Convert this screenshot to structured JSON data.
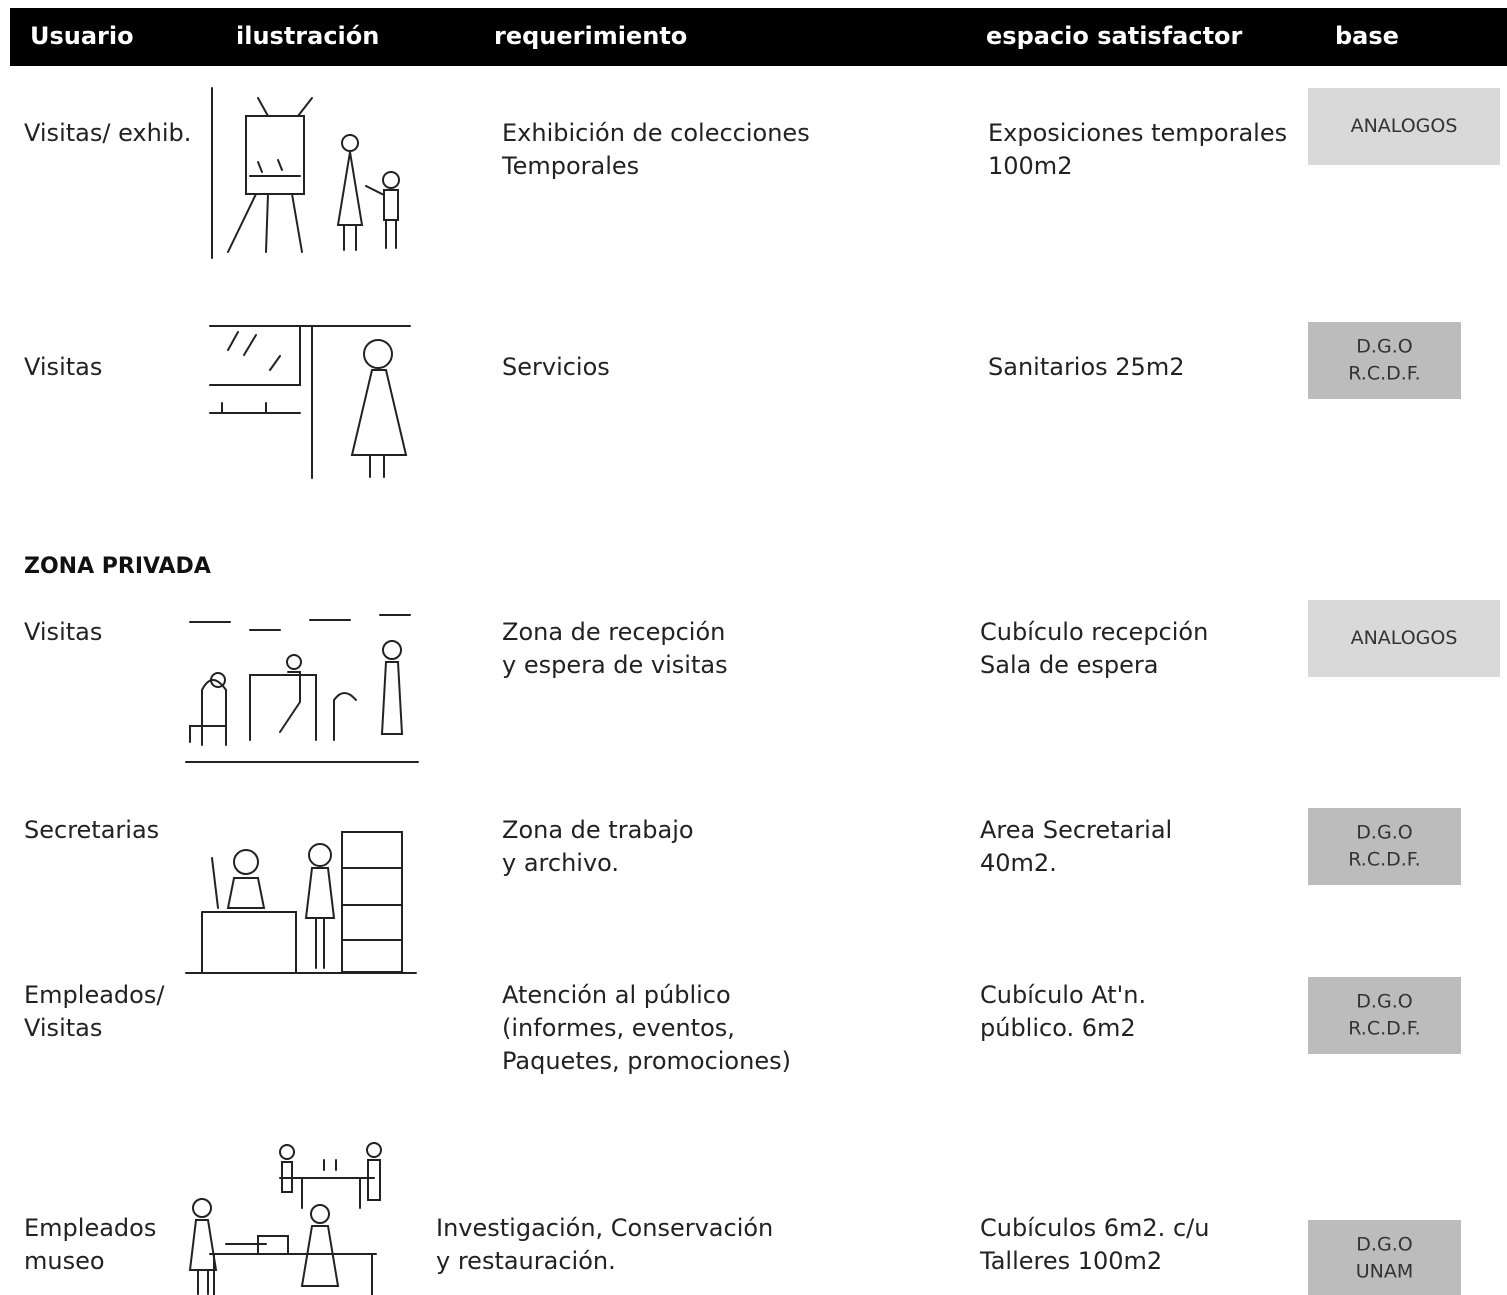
{
  "table": {
    "header": [
      "Usuario",
      "ilustración",
      "requerimiento",
      "espacio satisfactor",
      "base"
    ],
    "sections": [
      {
        "rows": [
          {
            "usuario": [
              "Visitas/ exhib."
            ],
            "requerimiento": [
              "Exhibición de colecciones",
              "Temporales"
            ],
            "espacio": [
              "Exposiciones temporales",
              "100m2"
            ],
            "base": [
              "ANALOGOS"
            ]
          },
          {
            "usuario": [
              "Visitas"
            ],
            "requerimiento": [
              "Servicios"
            ],
            "espacio": [
              "Sanitarios  25m2"
            ],
            "base": [
              "D.G.O",
              "R.C.D.F."
            ]
          }
        ]
      },
      {
        "title": "ZONA PRIVADA",
        "rows": [
          {
            "usuario": [
              "Visitas"
            ],
            "requerimiento": [
              "Zona de recepción",
              "y espera de visitas"
            ],
            "espacio": [
              "Cubículo recepción",
              "Sala de espera"
            ],
            "base": [
              "ANALOGOS"
            ]
          },
          {
            "usuario": [
              "Secretarias"
            ],
            "requerimiento": [
              "Zona de trabajo",
              "y archivo."
            ],
            "espacio": [
              "Area Secretarial",
              "40m2."
            ],
            "base": [
              "D.G.O",
              "R.C.D.F."
            ]
          },
          {
            "usuario": [
              "Empleados/",
              "Visitas"
            ],
            "requerimiento": [
              "Atención al público",
              "(informes, eventos,",
              "Paquetes, promociones)"
            ],
            "espacio": [
              "Cubículo At'n.",
              "público.  6m2"
            ],
            "base": [
              "D.G.O",
              "R.C.D.F."
            ]
          },
          {
            "usuario": [
              "Empleados",
              "museo"
            ],
            "requerimiento": [
              "Investigación, Conservación",
              "y restauración."
            ],
            "espacio": [
              "Cubículos 6m2. c/u",
              "Talleres  100m2"
            ],
            "base": [
              "D.G.O",
              "UNAM"
            ]
          }
        ]
      }
    ]
  }
}
